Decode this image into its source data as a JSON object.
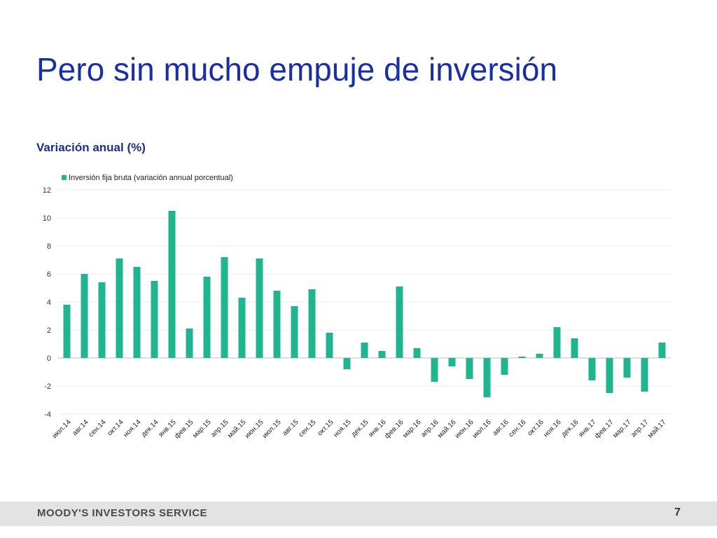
{
  "slide": {
    "title": "Pero sin mucho empuje de inversión"
  },
  "chart_data": {
    "type": "bar",
    "title": "Variación anual (%)",
    "xlabel": "",
    "ylabel": "",
    "ylim": [
      -4,
      12
    ],
    "yticks": [
      12,
      10,
      8,
      6,
      4,
      2,
      0,
      -2,
      -4
    ],
    "grid": true,
    "legend_position": "top-left",
    "bar_color": "#1fb58f",
    "categories": [
      "июл.14",
      "авг.14",
      "сен.14",
      "окт.14",
      "ноя.14",
      "дек.14",
      "янв.15",
      "фев.15",
      "мар.15",
      "апр.15",
      "май.15",
      "июн.15",
      "июл.15",
      "авг.15",
      "сен.15",
      "окт.15",
      "ноя.15",
      "дек.15",
      "янв.16",
      "фев.16",
      "мар.16",
      "апр.16",
      "май.16",
      "июн.16",
      "июл.16",
      "авг.16",
      "сен.16",
      "окт.16",
      "ноя.16",
      "дек.16",
      "янв.17",
      "фев.17",
      "мар.17",
      "апр.17",
      "май.17"
    ],
    "series": [
      {
        "name": "Inversión fija bruta (variación annual porcentual)",
        "values": [
          3.8,
          6.0,
          5.4,
          7.1,
          6.5,
          5.5,
          10.5,
          2.1,
          5.8,
          7.2,
          4.3,
          7.1,
          4.8,
          3.7,
          4.9,
          1.8,
          -0.8,
          1.1,
          0.5,
          5.1,
          0.7,
          -1.7,
          -0.6,
          -1.5,
          -2.8,
          -1.2,
          0.1,
          0.3,
          2.2,
          1.4,
          -1.6,
          -2.5,
          -1.4,
          -2.4,
          1.1
        ]
      }
    ]
  },
  "footer": {
    "brand": "MOODY'S INVESTORS SERVICE",
    "page": "7"
  }
}
